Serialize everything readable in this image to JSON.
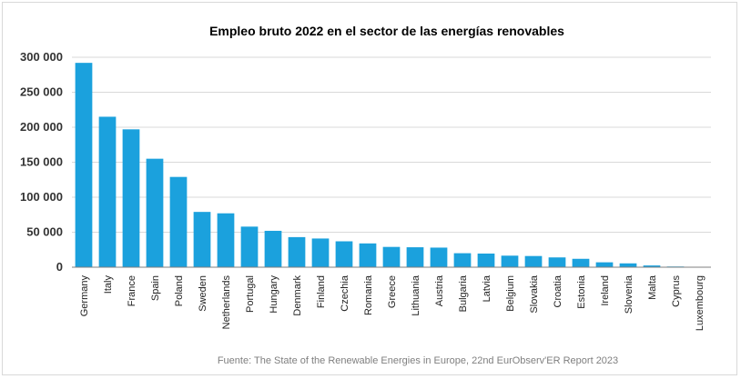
{
  "chart_data": {
    "type": "bar",
    "title": "Empleo bruto 2022 en el sector de las energías renovables",
    "xlabel": "",
    "ylabel": "",
    "ylim": [
      0,
      300000
    ],
    "yticks": [
      0,
      50000,
      100000,
      150000,
      200000,
      250000,
      300000
    ],
    "ytick_labels": [
      "0",
      "50 000",
      "100 000",
      "150 000",
      "200 000",
      "250 000",
      "300 000"
    ],
    "grid": true,
    "bar_color": "#1ba1dd",
    "categories": [
      "Germany",
      "Italy",
      "France",
      "Spain",
      "Poland",
      "Sweden",
      "Netherlands",
      "Portugal",
      "Hungary",
      "Denmark",
      "Finland",
      "Czechia",
      "Romania",
      "Greece",
      "Lithuania",
      "Austria",
      "Bulgaria",
      "Latvia",
      "Belgium",
      "Slovakia",
      "Croatia",
      "Estonia",
      "Ireland",
      "Slovenia",
      "Malta",
      "Cyprus",
      "Luxembourg"
    ],
    "values": [
      292000,
      215000,
      197000,
      155000,
      129000,
      79000,
      77000,
      58000,
      52000,
      43000,
      41000,
      37000,
      34000,
      29000,
      28500,
      28000,
      20000,
      19500,
      16500,
      16000,
      14000,
      12000,
      7000,
      5500,
      2500,
      1000,
      500
    ]
  },
  "source": "Fuente: The State of the Renewable Energies in Europe, 22nd EurObserv'ER Report 2023"
}
